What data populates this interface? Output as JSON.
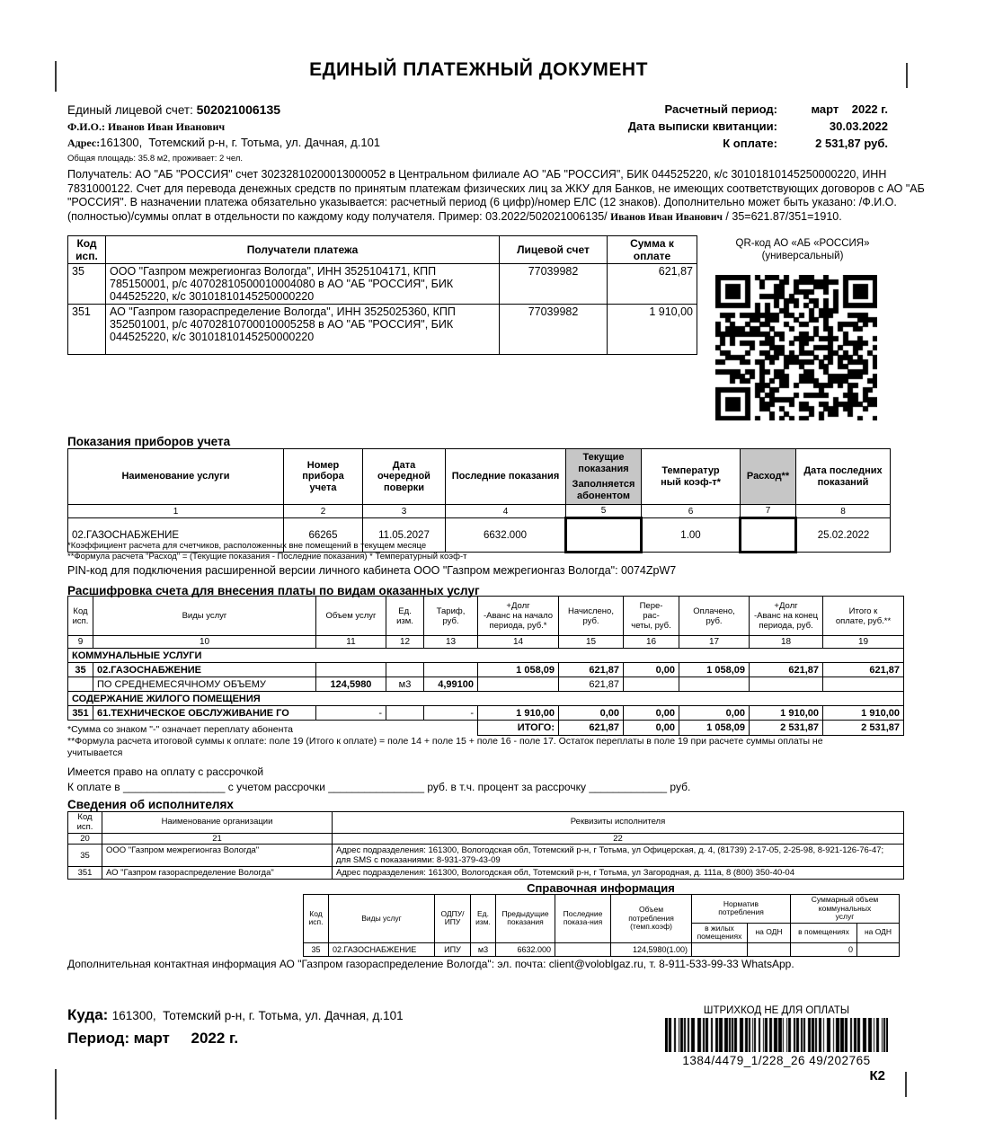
{
  "colors": {
    "shaded_cell": "#c6c6c6",
    "ink": "#000000"
  },
  "title": "ЕДИНЫЙ ПЛАТЕЖНЫЙ ДОКУМЕНТ",
  "account": {
    "label": "Единый лицевой счет: ",
    "value": "502021006135",
    "fio_line": "Ф.И.О.: Иванов Иван Иванович",
    "address_label": "Адрес:",
    "address_value": "161300,  Тотемский р-н, г. Тотьма, ул. Дачная, д.101",
    "area_line": "Общая площадь: 35.8 м2, проживает: 2 чел."
  },
  "summary": {
    "period_label": "Расчетный период:",
    "period_value": "март    2022 г.",
    "date_label": "Дата выписки квитанции:",
    "date_value": "30.03.2022",
    "due_label": "К оплате:",
    "due_value": "2 531,87 руб."
  },
  "recipient_note": {
    "part1": "Получатель: АО \"АБ \"РОССИЯ\" счет 30232810200013000052 в Центральном филиале АО \"АБ \"РОССИЯ\", БИК 044525220, к/с 30101810145250000220, ИНН 7831000122. Счет для перевода денежных средств по принятым платежам физических лиц за ЖКУ для Банков, не имеющих соответствующих договоров с АО \"АБ \"РОССИЯ\". В назначении платежа обязательно указывается: расчетный период (6 цифр)/номер ЕЛС (12 знаков). Дополнительно может быть указано: /Ф.И.О. (полностью)/суммы оплат в отдельности по каждому коду получателя.  Пример: 03.2022/502021006135/ ",
    "part2": "Иванов Иван Иванович",
    "part3": " / 35=621.87/351=1910."
  },
  "payees": {
    "headers": {
      "code": "Код\nисп.",
      "name": "Получатели платежа",
      "account": "Лицевой счет",
      "amount": "Сумма к оплате"
    },
    "rows": [
      {
        "code": "35",
        "name": "ООО \"Газпром межрегионгаз Вологда\", ИНН 3525104171, КПП 785150001, р/с 40702810500010004080 в АО \"АБ \"РОССИЯ\", БИК 044525220, к/с 30101810145250000220",
        "account": "77039982",
        "amount": "621,87"
      },
      {
        "code": "351",
        "name": "АО \"Газпром газораспределение Вологда\", ИНН 3525025360, КПП 352501001, р/с 40702810700010005258 в АО \"АБ \"РОССИЯ\", БИК 044525220, к/с 30101810145250000220",
        "account": "77039982",
        "amount": "1 910,00"
      }
    ]
  },
  "qr": {
    "line1": "QR-код АО «АБ «РОССИЯ»",
    "line2": "(универсальный)"
  },
  "meters": {
    "title": "Показания приборов учета",
    "headers": {
      "service": "Наименование услуги",
      "number": "Номер прибора\nучета",
      "check_date": "Дата\nочередной\nповерки",
      "last": "Последние показания",
      "current_top": "Текущие\nпоказания",
      "current_bottom": "Заполняется\nабонентом",
      "temp": "Температур\nный коэф-т*",
      "consumption": "Расход**",
      "last_date": "Дата последних\nпоказаний"
    },
    "numbers": [
      "1",
      "2",
      "3",
      "4",
      "5",
      "6",
      "7",
      "8"
    ],
    "row": {
      "service": "02.ГАЗОСНАБЖЕНИЕ",
      "number": "66265",
      "check_date": "11.05.2027",
      "last": "6632.000",
      "current": "",
      "temp": "1.00",
      "consumption": "",
      "last_date": "25.02.2022"
    },
    "footnote1": "*Коэффициент расчета для счетчиков, расположенных вне помещений в текущем месяце",
    "footnote2": "**Формула расчета \"Расход\" = (Текущие показания - Последние показания) * Температурный коэф-т",
    "pin_line": "PIN-код для подключения расширенной версии личного кабинета ООО \"Газпром межрегионгаз Вологда\": 0074ZpW7"
  },
  "breakdown": {
    "title": "Расшифровка счета для внесения платы по видам оказанных услуг",
    "headers": [
      "Код\nисп.",
      "Виды услуг",
      "Объем услуг",
      "Ед.\nизм.",
      "Тариф,\nруб.",
      "+Долг\n-Аванс на начало\nпериода, руб.*",
      "Начислено,\nруб.",
      "Пере-\nрас-\nчеты, руб.",
      "Оплачено,\nруб.",
      "+Долг\n-Аванс на конец\nпериода, руб.",
      "Итого к\nоплате, руб.**"
    ],
    "numbers": [
      "9",
      "10",
      "11",
      "12",
      "13",
      "14",
      "15",
      "16",
      "17",
      "18",
      "19"
    ],
    "section1": "КОММУНАЛЬНЫЕ УСЛУГИ",
    "row1": {
      "code": "35",
      "name": "02.ГАЗОСНАБЖЕНИЕ",
      "debt_start": "1 058,09",
      "accrued": "621,87",
      "recalc": "0,00",
      "paid": "1 058,09",
      "debt_end": "621,87",
      "total": "621,87"
    },
    "row2": {
      "name": "ПО СРЕДНЕМЕСЯЧНОМУ ОБЪЕМУ",
      "volume": "124,5980",
      "unit": "м3",
      "tariff": "4,99100",
      "accrued": "621,87"
    },
    "section2": "СОДЕРЖАНИЕ ЖИЛОГО ПОМЕЩЕНИЯ",
    "row3": {
      "code": "351",
      "name": "61.ТЕХНИЧЕСКОЕ ОБСЛУЖИВАНИЕ ГО",
      "volume": "-",
      "tariff": "-",
      "debt_start": "1 910,00",
      "accrued": "0,00",
      "recalc": "0,00",
      "paid": "0,00",
      "debt_end": "1 910,00",
      "total": "1 910,00"
    },
    "total_row": {
      "label": "ИТОГО:",
      "accrued": "621,87",
      "recalc": "0,00",
      "paid": "1 058,09",
      "debt_end": "2 531,87",
      "total": "2 531,87"
    },
    "footnote1": "*Сумма со знаком \"-\" означает переплату абонента",
    "footnote2": "**Формула расчета итоговой суммы к оплате: поле 19 (Итого к оплате) = поле 14 + поле 15 + поле 16 - поле 17. Остаток переплаты в поле 19 при расчете суммы оплаты не учитывается"
  },
  "installment": {
    "line1": "Имеется право на оплату с рассрочкой",
    "line2": "К оплате в _________________ с учетом рассрочки ________________ руб. в т.ч. процент за рассрочку _____________ руб."
  },
  "executors": {
    "title": "Сведения об исполнителях",
    "headers": {
      "code": "Код\nисп.",
      "name": "Наименование организации",
      "details": "Реквизиты исполнителя"
    },
    "numbers": [
      "20",
      "21",
      "22"
    ],
    "rows": [
      {
        "code": "35",
        "name": "ООО \"Газпром межрегионгаз Вологда\"",
        "details": "Адрес подразделения: 161300, Вологодская обл, Тотемский р-н, г Тотьма, ул Офицерская, д. 4, (81739) 2-17-05, 2-25-98, 8-921-126-76-47; для SMS с показаниями: 8-931-379-43-09"
      },
      {
        "code": "351",
        "name": "АО \"Газпром газораспределение Вологда\"",
        "details": "Адрес подразделения: 161300, Вологодская обл, Тотемский р-н, г Тотьма, ул Загородная, д. 111а, 8 (800) 350-40-04"
      }
    ]
  },
  "reference": {
    "title": "Справочная информация",
    "headers": {
      "code": "Код\nисп.",
      "service": "Виды услуг",
      "odpu": "ОДПУ/\nИПУ",
      "unit": "Ед.\nизм.",
      "prev": "Предыдущие\nпоказания",
      "last": "Последние\nпоказа-ния",
      "volume": "Объем\nпотребления\n(темп.коэф)",
      "norm_group": "Норматив\nпотребления",
      "norm_sub1": "в жилых\nпомещениях",
      "norm_sub2": "на ОДН",
      "sum_group": "Суммарный объем коммунальных\nуслуг",
      "sum_sub1": "в помещениях",
      "sum_sub2": "на ОДН"
    },
    "row": {
      "code": "35",
      "service": "02.ГАЗОСНАБЖЕНИЕ",
      "odpu": "ИПУ",
      "unit": "м3",
      "prev": "6632.000",
      "last": "",
      "volume": "124,5980(1.00)",
      "norm1": "",
      "norm2": "",
      "sum1": "0",
      "sum2": ""
    }
  },
  "bottom": {
    "contact_line": "Дополнительная контактная информация АО \"Газпром газораспределение Вологда\": эл. почта: client@voloblgaz.ru, т. 8-911-533-99-33 WhatsApp.",
    "kuda_label": "Куда:",
    "kuda_value": "161300,  Тотемский р-н, г. Тотьма, ул. Дачная, д.101",
    "period_label": "Период:",
    "period_value": "март     2022 г.",
    "barcode_label": "ШТРИХКОД НЕ ДЛЯ ОПЛАТЫ",
    "barcode_number": "1384/4479_1/228_26 49/202765",
    "page_code": "К2"
  }
}
